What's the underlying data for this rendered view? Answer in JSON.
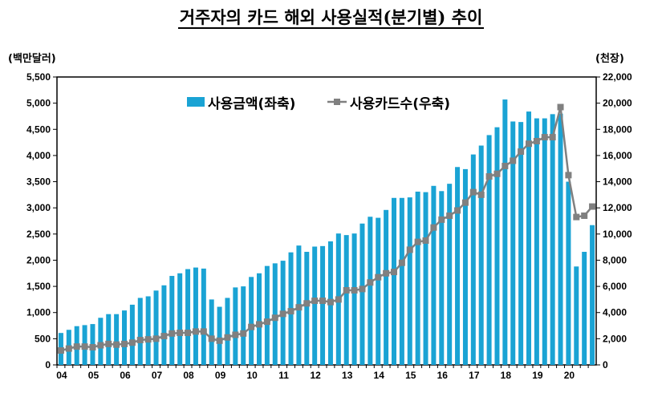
{
  "chart_data": {
    "type": "bar+line",
    "title": "거주자의 카드 해외 사용실적(분기별) 추이",
    "left_unit": "(백만달러)",
    "right_unit": "(천장)",
    "x_tick_labels": [
      "04",
      "05",
      "06",
      "07",
      "08",
      "09",
      "10",
      "11",
      "12",
      "13",
      "14",
      "15",
      "16",
      "17",
      "18",
      "19",
      "20"
    ],
    "quarters_per_year": 4,
    "y_left": {
      "min": 0,
      "max": 5500,
      "step": 500,
      "ticks": [
        "0",
        "500",
        "1,000",
        "1,500",
        "2,000",
        "2,500",
        "3,000",
        "3,500",
        "4,000",
        "4,500",
        "5,000",
        "5,500"
      ]
    },
    "y_right": {
      "min": 0,
      "max": 22000,
      "step": 2000,
      "ticks": [
        "0",
        "2,000",
        "4,000",
        "6,000",
        "8,000",
        "10,000",
        "12,000",
        "14,000",
        "16,000",
        "18,000",
        "20,000",
        "22,000"
      ]
    },
    "legend_position": "top-center",
    "grid": false,
    "series": [
      {
        "name": "사용금액(좌축)",
        "type": "bar",
        "axis": "left",
        "color": "#1AA3D4",
        "values": [
          610,
          670,
          740,
          760,
          780,
          900,
          970,
          970,
          1040,
          1150,
          1280,
          1310,
          1420,
          1520,
          1700,
          1750,
          1830,
          1860,
          1840,
          1250,
          1110,
          1280,
          1480,
          1500,
          1680,
          1750,
          1890,
          1940,
          1990,
          2150,
          2280,
          2160,
          2260,
          2270,
          2360,
          2510,
          2480,
          2510,
          2700,
          2830,
          2810,
          2960,
          3190,
          3190,
          3200,
          3310,
          3300,
          3420,
          3320,
          3460,
          3780,
          3740,
          4020,
          4190,
          4390,
          4540,
          5070,
          4650,
          4640,
          4840,
          4710,
          4710,
          4790,
          4800,
          3500,
          1880,
          2160,
          2670
        ]
      },
      {
        "name": "사용카드수(우축)",
        "type": "line",
        "axis": "right",
        "color": "#808080",
        "values": [
          1100,
          1250,
          1400,
          1400,
          1350,
          1500,
          1600,
          1550,
          1600,
          1700,
          1900,
          1950,
          2000,
          2200,
          2400,
          2450,
          2450,
          2550,
          2550,
          2000,
          1850,
          2100,
          2300,
          2400,
          2900,
          3100,
          3300,
          3600,
          3900,
          4100,
          4400,
          4700,
          4900,
          4900,
          4800,
          5000,
          5700,
          5700,
          5800,
          6300,
          6700,
          7000,
          7100,
          7800,
          8800,
          9400,
          9500,
          10500,
          11100,
          11400,
          11800,
          12400,
          13200,
          13000,
          14400,
          14600,
          15200,
          15600,
          16300,
          16900,
          17100,
          17400,
          17400,
          19700,
          14500,
          11300,
          11400,
          12100
        ]
      }
    ]
  }
}
